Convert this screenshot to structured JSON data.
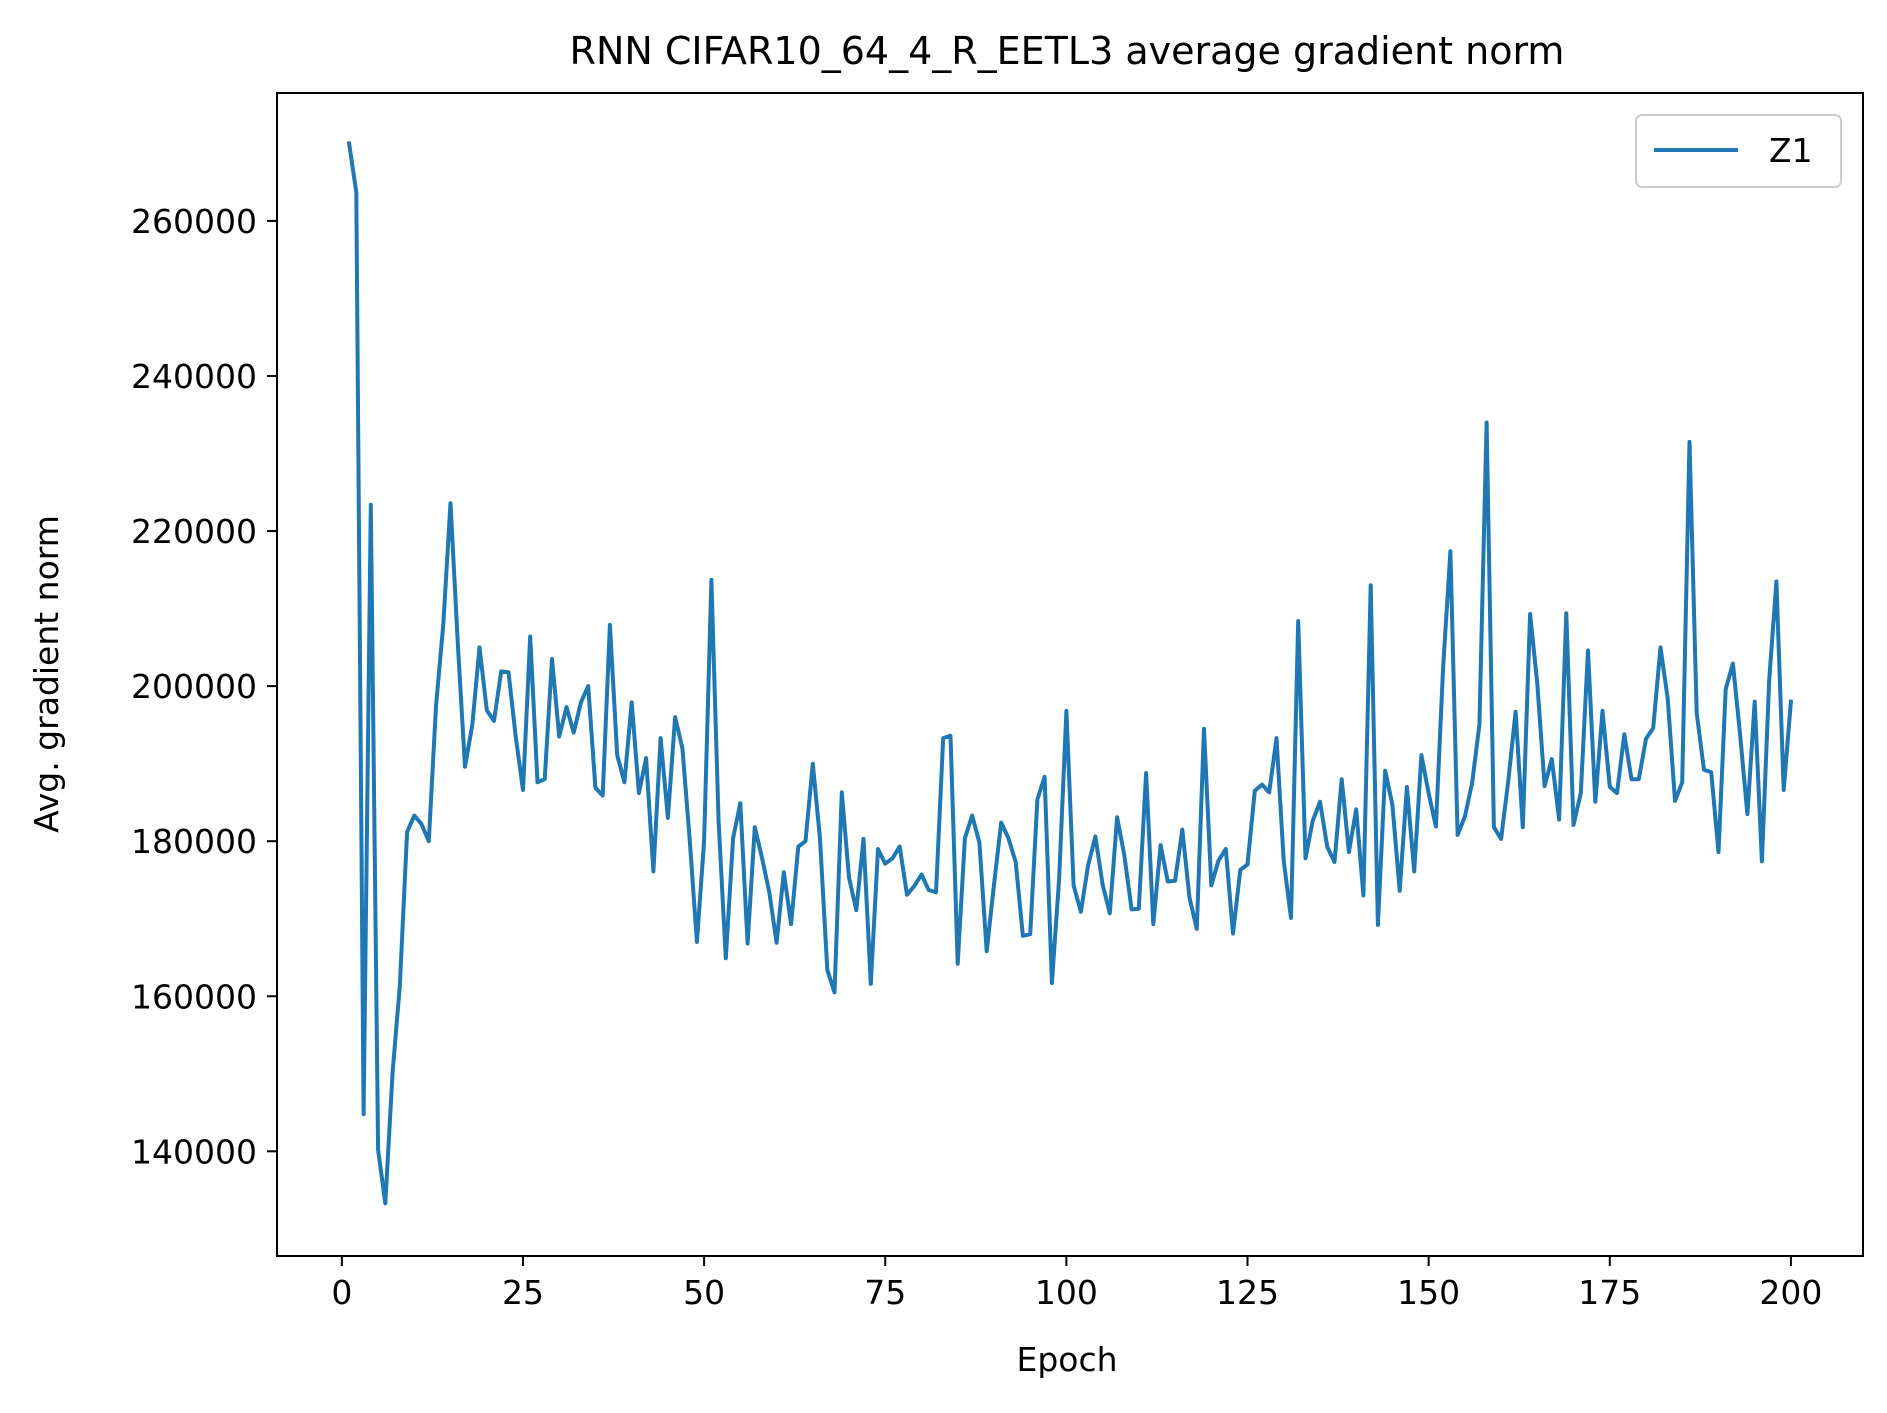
{
  "chart_data": {
    "type": "line",
    "title": "RNN CIFAR10_64_4_R_EETL3 average gradient norm",
    "xlabel": "Epoch",
    "ylabel": "Avg. gradient norm",
    "xlim": [
      -8.95,
      209.95
    ],
    "ylim": [
      126500,
      276500
    ],
    "x_ticks": [
      0,
      25,
      50,
      75,
      100,
      125,
      150,
      175,
      200
    ],
    "y_ticks": [
      140000,
      160000,
      180000,
      200000,
      220000,
      240000,
      260000
    ],
    "grid": false,
    "legend_position": "upper right",
    "series": [
      {
        "name": "Z1",
        "color": "#1f77b4",
        "x_start": 1,
        "x_step": 1,
        "values": [
          270000,
          263700,
          144800,
          223400,
          140200,
          133300,
          150200,
          161300,
          181200,
          183300,
          182200,
          180000,
          197400,
          208000,
          223600,
          205500,
          189600,
          195000,
          205000,
          196900,
          195500,
          201900,
          201800,
          193500,
          186600,
          206400,
          187600,
          188000,
          203500,
          193500,
          197300,
          194000,
          197900,
          200000,
          186900,
          185900,
          207900,
          191100,
          187600,
          197900,
          186200,
          190700,
          176100,
          193300,
          183000,
          196000,
          192000,
          180400,
          167000,
          180000,
          213700,
          182500,
          164900,
          180400,
          184900,
          166800,
          181800,
          177800,
          173400,
          166900,
          176000,
          169300,
          179300,
          180000,
          190000,
          180300,
          163400,
          160500,
          186300,
          175300,
          171100,
          180300,
          161600,
          179000,
          177100,
          177800,
          179300,
          173100,
          174200,
          175700,
          173700,
          173400,
          193300,
          193600,
          164200,
          180400,
          183300,
          179800,
          165800,
          174300,
          182400,
          180400,
          177300,
          167800,
          168000,
          185400,
          188300,
          161700,
          175100,
          196800,
          174300,
          170900,
          176900,
          180600,
          174400,
          170700,
          183100,
          178200,
          171200,
          171300,
          188800,
          169300,
          179500,
          174800,
          174900,
          181500,
          172700,
          168700,
          194500,
          174300,
          177500,
          179000,
          168100,
          176300,
          177000,
          186500,
          187300,
          186300,
          193300,
          177500,
          170100,
          208400,
          177800,
          182600,
          185100,
          179300,
          177300,
          188000,
          178600,
          184100,
          173000,
          213000,
          169200,
          189100,
          184700,
          173600,
          187000,
          176100,
          191100,
          186200,
          181900,
          202400,
          217400,
          180800,
          183200,
          187500,
          195000,
          234000,
          181800,
          180300,
          187800,
          196700,
          181800,
          209300,
          200300,
          187100,
          190600,
          182800,
          209400,
          182100,
          186200,
          204600,
          185100,
          196800,
          187000,
          186200,
          193800,
          188000,
          188000,
          193200,
          194600,
          205000,
          198400,
          185200,
          187600,
          231500,
          196500,
          189200,
          188900,
          178600,
          199600,
          202900,
          193600,
          183500,
          198000,
          177400,
          200800,
          213500,
          186600,
          198000
        ]
      }
    ]
  }
}
